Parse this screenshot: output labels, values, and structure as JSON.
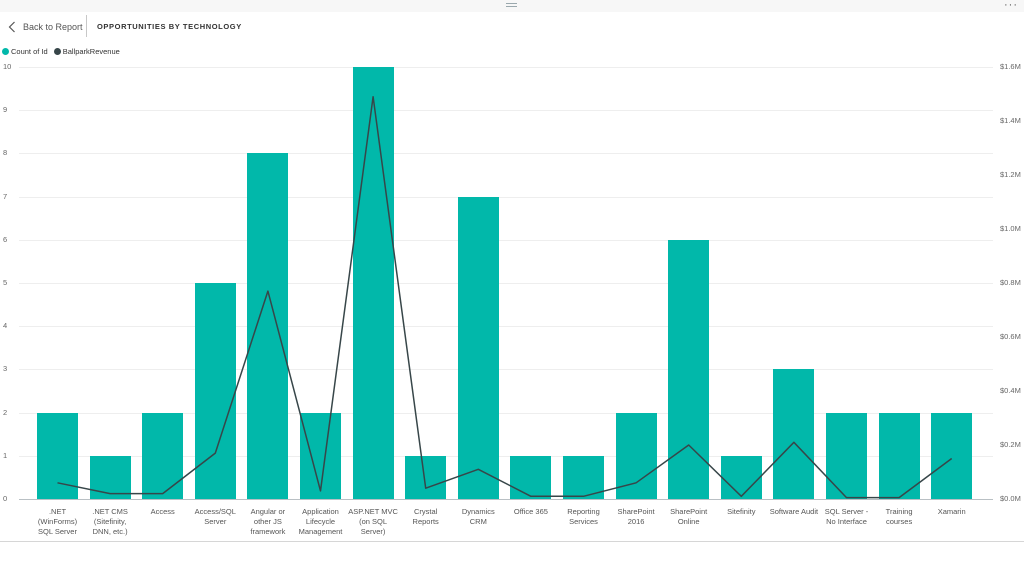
{
  "header": {
    "back_label": "Back to Report",
    "title": "OPPORTUNITIES BY TECHNOLOGY",
    "more_icon": "ellipsis-icon",
    "drag_icon": "drag-handle-icon",
    "back_icon": "chevron-left-icon"
  },
  "legend": {
    "items": [
      {
        "label": "Count of Id",
        "color": "#01b8aa"
      },
      {
        "label": "BallparkRevenue",
        "color": "#374649"
      }
    ]
  },
  "axes": {
    "left_ticks": [
      "0",
      "1",
      "2",
      "3",
      "4",
      "5",
      "6",
      "7",
      "8",
      "9",
      "10"
    ],
    "right_ticks": [
      "$0.0M",
      "$0.2M",
      "$0.4M",
      "$0.6M",
      "$0.8M",
      "$1.0M",
      "$1.2M",
      "$1.4M",
      "$1.6M"
    ]
  },
  "categories_display": [
    [
      ".NET",
      "(WinForms)",
      "SQL Server"
    ],
    [
      ".NET CMS",
      "(Sitefinity,",
      "DNN, etc.)"
    ],
    [
      "Access"
    ],
    [
      "Access/SQL",
      "Server"
    ],
    [
      "Angular or",
      "other JS",
      "framework"
    ],
    [
      "Application",
      "Lifecycle",
      "Management"
    ],
    [
      "ASP.NET MVC",
      "(on SQL",
      "Server)"
    ],
    [
      "Crystal",
      "Reports"
    ],
    [
      "Dynamics",
      "CRM"
    ],
    [
      "Office 365"
    ],
    [
      "Reporting",
      "Services"
    ],
    [
      "SharePoint",
      "2016"
    ],
    [
      "SharePoint",
      "Online"
    ],
    [
      "Sitefinity"
    ],
    [
      "Software Audit"
    ],
    [
      "SQL Server -",
      "No Interface"
    ],
    [
      "Training",
      "courses"
    ],
    [
      "Xamarin"
    ]
  ],
  "chart_data": {
    "type": "bar",
    "title": "OPPORTUNITIES BY TECHNOLOGY",
    "xlabel": "",
    "ylabel": "Count of Id",
    "y2label": "BallparkRevenue",
    "categories": [
      ".NET (WinForms) SQL Server",
      ".NET CMS (Sitefinity, DNN, etc.)",
      "Access",
      "Access/SQL Server",
      "Angular or other JS framework",
      "Application Lifecycle Management",
      "ASP.NET MVC (on SQL Server)",
      "Crystal Reports",
      "Dynamics CRM",
      "Office 365",
      "Reporting Services",
      "SharePoint 2016",
      "SharePoint Online",
      "Sitefinity",
      "Software Audit",
      "SQL Server - No Interface",
      "Training courses",
      "Xamarin"
    ],
    "series": [
      {
        "name": "Count of Id",
        "type": "bar",
        "axis": "left",
        "color": "#01b8aa",
        "values": [
          2,
          1,
          2,
          5,
          8,
          2,
          10,
          1,
          7,
          1,
          1,
          2,
          6,
          1,
          3,
          2,
          2,
          2
        ]
      },
      {
        "name": "BallparkRevenue",
        "type": "line",
        "axis": "right",
        "color": "#374649",
        "unit": "$M",
        "values": [
          0.06,
          0.02,
          0.02,
          0.17,
          0.77,
          0.03,
          1.49,
          0.04,
          0.11,
          0.01,
          0.01,
          0.06,
          0.2,
          0.01,
          0.21,
          0.005,
          0.005,
          0.15
        ]
      }
    ],
    "ylim": [
      0,
      10
    ],
    "y2lim": [
      0,
      1.6
    ],
    "grid": true,
    "legend_position": "top-left"
  }
}
